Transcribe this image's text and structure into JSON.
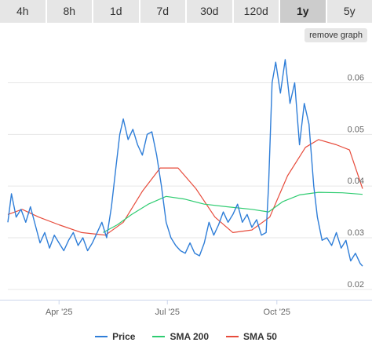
{
  "tabs": [
    {
      "label": "4h",
      "active": false
    },
    {
      "label": "8h",
      "active": false
    },
    {
      "label": "1d",
      "active": false
    },
    {
      "label": "7d",
      "active": false
    },
    {
      "label": "30d",
      "active": false
    },
    {
      "label": "120d",
      "active": false
    },
    {
      "label": "1y",
      "active": true
    },
    {
      "label": "5y",
      "active": false
    }
  ],
  "remove_graph_label": "remove graph",
  "chart_data": {
    "type": "line",
    "x_labels": [
      "Apr '25",
      "Jul '25",
      "Oct '25"
    ],
    "x_label_dates": [
      "2025-04-01",
      "2025-07-01",
      "2025-10-01"
    ],
    "x_range": [
      "2025-02-17",
      "2025-12-12"
    ],
    "y_ticks": [
      0.02,
      0.03,
      0.04,
      0.05,
      0.06
    ],
    "ylim": [
      0.018,
      0.066
    ],
    "y_axis_side": "right",
    "grid": "horizontal",
    "legend_position": "bottom-center",
    "series": [
      {
        "name": "Price",
        "color": "#2f7ed8",
        "points": [
          [
            "2025-02-17",
            0.033
          ],
          [
            "2025-02-20",
            0.0385
          ],
          [
            "2025-02-24",
            0.034
          ],
          [
            "2025-02-28",
            0.0355
          ],
          [
            "2025-03-04",
            0.033
          ],
          [
            "2025-03-08",
            0.036
          ],
          [
            "2025-03-12",
            0.0325
          ],
          [
            "2025-03-16",
            0.029
          ],
          [
            "2025-03-20",
            0.031
          ],
          [
            "2025-03-24",
            0.028
          ],
          [
            "2025-03-28",
            0.0305
          ],
          [
            "2025-04-01",
            0.029
          ],
          [
            "2025-04-05",
            0.0275
          ],
          [
            "2025-04-09",
            0.0295
          ],
          [
            "2025-04-13",
            0.031
          ],
          [
            "2025-04-17",
            0.0285
          ],
          [
            "2025-04-21",
            0.03
          ],
          [
            "2025-04-25",
            0.0275
          ],
          [
            "2025-04-29",
            0.029
          ],
          [
            "2025-05-03",
            0.031
          ],
          [
            "2025-05-07",
            0.033
          ],
          [
            "2025-05-11",
            0.03
          ],
          [
            "2025-05-15",
            0.036
          ],
          [
            "2025-05-19",
            0.044
          ],
          [
            "2025-05-22",
            0.05
          ],
          [
            "2025-05-25",
            0.053
          ],
          [
            "2025-05-29",
            0.049
          ],
          [
            "2025-06-02",
            0.051
          ],
          [
            "2025-06-06",
            0.048
          ],
          [
            "2025-06-10",
            0.046
          ],
          [
            "2025-06-14",
            0.05
          ],
          [
            "2025-06-18",
            0.0505
          ],
          [
            "2025-06-22",
            0.046
          ],
          [
            "2025-06-26",
            0.04
          ],
          [
            "2025-06-30",
            0.033
          ],
          [
            "2025-07-04",
            0.03
          ],
          [
            "2025-07-08",
            0.0285
          ],
          [
            "2025-07-12",
            0.0275
          ],
          [
            "2025-07-16",
            0.027
          ],
          [
            "2025-07-20",
            0.029
          ],
          [
            "2025-07-24",
            0.027
          ],
          [
            "2025-07-28",
            0.0265
          ],
          [
            "2025-08-01",
            0.029
          ],
          [
            "2025-08-05",
            0.033
          ],
          [
            "2025-08-09",
            0.0305
          ],
          [
            "2025-08-13",
            0.0325
          ],
          [
            "2025-08-17",
            0.035
          ],
          [
            "2025-08-21",
            0.033
          ],
          [
            "2025-08-25",
            0.0345
          ],
          [
            "2025-08-29",
            0.0365
          ],
          [
            "2025-09-02",
            0.033
          ],
          [
            "2025-09-06",
            0.0345
          ],
          [
            "2025-09-10",
            0.032
          ],
          [
            "2025-09-14",
            0.0335
          ],
          [
            "2025-09-18",
            0.0305
          ],
          [
            "2025-09-22",
            0.031
          ],
          [
            "2025-09-24",
            0.04
          ],
          [
            "2025-09-27",
            0.06
          ],
          [
            "2025-09-30",
            0.064
          ],
          [
            "2025-10-04",
            0.058
          ],
          [
            "2025-10-08",
            0.0645
          ],
          [
            "2025-10-12",
            0.056
          ],
          [
            "2025-10-16",
            0.06
          ],
          [
            "2025-10-20",
            0.048
          ],
          [
            "2025-10-24",
            0.056
          ],
          [
            "2025-10-28",
            0.052
          ],
          [
            "2025-11-01",
            0.04
          ],
          [
            "2025-11-04",
            0.034
          ],
          [
            "2025-11-08",
            0.0295
          ],
          [
            "2025-11-12",
            0.03
          ],
          [
            "2025-11-16",
            0.0285
          ],
          [
            "2025-11-20",
            0.031
          ],
          [
            "2025-11-24",
            0.028
          ],
          [
            "2025-11-28",
            0.0295
          ],
          [
            "2025-12-02",
            0.0255
          ],
          [
            "2025-12-06",
            0.027
          ],
          [
            "2025-12-10",
            0.025
          ],
          [
            "2025-12-12",
            0.0245
          ]
        ]
      },
      {
        "name": "SMA 200",
        "color": "#2ecc71",
        "points": [
          [
            "2025-05-08",
            0.031
          ],
          [
            "2025-05-20",
            0.0325
          ],
          [
            "2025-06-01",
            0.0345
          ],
          [
            "2025-06-15",
            0.0365
          ],
          [
            "2025-06-30",
            0.038
          ],
          [
            "2025-07-15",
            0.0375
          ],
          [
            "2025-08-01",
            0.0365
          ],
          [
            "2025-08-20",
            0.036
          ],
          [
            "2025-09-10",
            0.0355
          ],
          [
            "2025-09-24",
            0.035
          ],
          [
            "2025-10-06",
            0.037
          ],
          [
            "2025-10-20",
            0.0383
          ],
          [
            "2025-11-05",
            0.0388
          ],
          [
            "2025-11-25",
            0.0387
          ],
          [
            "2025-12-12",
            0.0384
          ]
        ]
      },
      {
        "name": "SMA 50",
        "color": "#e74c3c",
        "points": [
          [
            "2025-02-17",
            0.0345
          ],
          [
            "2025-03-01",
            0.0355
          ],
          [
            "2025-03-15",
            0.034
          ],
          [
            "2025-04-01",
            0.0325
          ],
          [
            "2025-04-20",
            0.031
          ],
          [
            "2025-05-10",
            0.0305
          ],
          [
            "2025-05-25",
            0.033
          ],
          [
            "2025-06-10",
            0.039
          ],
          [
            "2025-06-25",
            0.0435
          ],
          [
            "2025-07-10",
            0.0435
          ],
          [
            "2025-07-25",
            0.0395
          ],
          [
            "2025-08-10",
            0.034
          ],
          [
            "2025-08-25",
            0.031
          ],
          [
            "2025-09-10",
            0.0315
          ],
          [
            "2025-09-25",
            0.034
          ],
          [
            "2025-10-10",
            0.042
          ],
          [
            "2025-10-25",
            0.0475
          ],
          [
            "2025-11-05",
            0.049
          ],
          [
            "2025-11-20",
            0.048
          ],
          [
            "2025-12-01",
            0.047
          ],
          [
            "2025-12-12",
            0.0395
          ]
        ]
      }
    ]
  }
}
